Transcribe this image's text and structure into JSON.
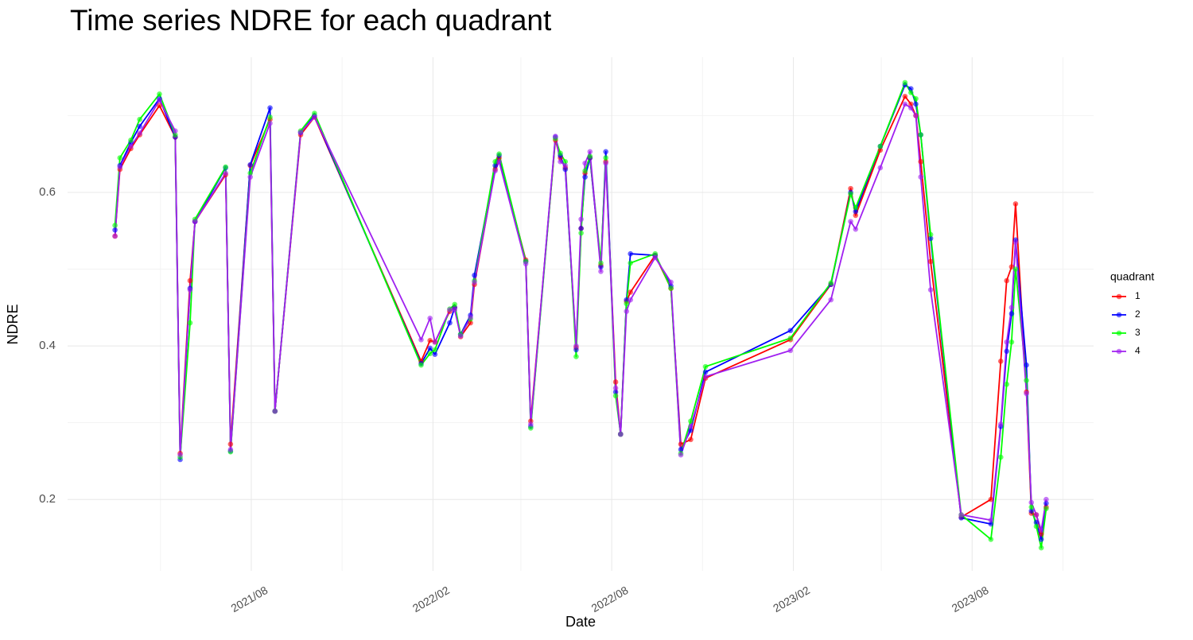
{
  "chart_data": {
    "type": "line",
    "title": "Time series NDRE for each quadrant",
    "x_label": "Date",
    "y_label": "NDRE",
    "legend_title": "quadrant",
    "legend": "right",
    "grid": true,
    "x": [
      "2021-03-16",
      "2021-03-21",
      "2021-04-01",
      "2021-04-10",
      "2021-04-30",
      "2021-05-16",
      "2021-05-21",
      "2021-05-31",
      "2021-06-05",
      "2021-07-06",
      "2021-07-11",
      "2021-07-31",
      "2021-08-20",
      "2021-08-25",
      "2021-09-20",
      "2021-10-04",
      "2022-01-20",
      "2022-01-29",
      "2022-02-03",
      "2022-02-18",
      "2022-02-23",
      "2022-03-01",
      "2022-03-11",
      "2022-03-15",
      "2022-04-05",
      "2022-04-09",
      "2022-05-06",
      "2022-05-11",
      "2022-06-05",
      "2022-06-10",
      "2022-06-15",
      "2022-06-26",
      "2022-07-01",
      "2022-07-05",
      "2022-07-10",
      "2022-07-21",
      "2022-07-26",
      "2022-08-05",
      "2022-08-10",
      "2022-08-16",
      "2022-08-20",
      "2022-09-14",
      "2022-09-30",
      "2022-10-10",
      "2022-10-20",
      "2022-11-04",
      "2023-01-29",
      "2023-03-11",
      "2023-03-31",
      "2023-04-05",
      "2023-04-30",
      "2023-05-25",
      "2023-05-31",
      "2023-06-05",
      "2023-06-10",
      "2023-06-20",
      "2023-07-21",
      "2023-08-20",
      "2023-08-30",
      "2023-09-05",
      "2023-09-10",
      "2023-09-14",
      "2023-09-25",
      "2023-09-30",
      "2023-10-05",
      "2023-10-10",
      "2023-10-15"
    ],
    "series": [
      {
        "name": "1",
        "color": "#ff0000",
        "values": [
          0.543,
          0.63,
          0.657,
          0.675,
          0.713,
          0.672,
          0.26,
          0.485,
          0.562,
          0.623,
          0.272,
          0.635,
          0.695,
          0.315,
          0.675,
          0.698,
          0.38,
          0.407,
          0.405,
          0.445,
          0.45,
          0.412,
          0.43,
          0.48,
          0.63,
          0.645,
          0.512,
          0.302,
          0.668,
          0.645,
          0.632,
          0.398,
          0.553,
          0.625,
          0.645,
          0.505,
          0.64,
          0.353,
          0.285,
          0.458,
          0.47,
          0.518,
          0.475,
          0.272,
          0.278,
          0.358,
          0.408,
          0.48,
          0.605,
          0.57,
          0.655,
          0.725,
          0.715,
          0.7,
          0.64,
          0.51,
          0.177,
          0.2,
          0.38,
          0.485,
          0.503,
          0.585,
          0.34,
          0.182,
          0.18,
          0.155,
          0.19
        ]
      },
      {
        "name": "2",
        "color": "#0000ff",
        "values": [
          0.551,
          0.635,
          0.665,
          0.686,
          0.722,
          0.672,
          0.252,
          0.475,
          0.562,
          0.632,
          0.263,
          0.636,
          0.71,
          0.315,
          0.678,
          0.7,
          0.377,
          0.397,
          0.389,
          0.43,
          0.45,
          0.415,
          0.44,
          0.492,
          0.635,
          0.648,
          0.51,
          0.295,
          0.672,
          0.648,
          0.63,
          0.395,
          0.553,
          0.62,
          0.645,
          0.503,
          0.653,
          0.34,
          0.285,
          0.46,
          0.52,
          0.518,
          0.478,
          0.265,
          0.29,
          0.366,
          0.42,
          0.48,
          0.6,
          0.575,
          0.66,
          0.74,
          0.735,
          0.715,
          0.675,
          0.54,
          0.176,
          0.168,
          0.295,
          0.393,
          0.442,
          0.538,
          0.375,
          0.185,
          0.17,
          0.148,
          0.195
        ]
      },
      {
        "name": "3",
        "color": "#00ff00",
        "values": [
          0.557,
          0.645,
          0.668,
          0.695,
          0.728,
          0.675,
          0.255,
          0.43,
          0.565,
          0.633,
          0.262,
          0.625,
          0.698,
          0.315,
          0.68,
          0.703,
          0.375,
          0.39,
          0.395,
          0.448,
          0.454,
          0.415,
          0.435,
          0.485,
          0.64,
          0.65,
          0.51,
          0.293,
          0.67,
          0.651,
          0.64,
          0.386,
          0.547,
          0.628,
          0.647,
          0.508,
          0.645,
          0.335,
          0.285,
          0.455,
          0.508,
          0.52,
          0.475,
          0.26,
          0.302,
          0.373,
          0.41,
          0.482,
          0.598,
          0.58,
          0.66,
          0.743,
          0.73,
          0.722,
          0.675,
          0.545,
          0.18,
          0.148,
          0.255,
          0.35,
          0.405,
          0.5,
          0.355,
          0.19,
          0.165,
          0.137,
          0.188
        ]
      },
      {
        "name": "4",
        "color": "#a020f0",
        "values": [
          0.543,
          0.633,
          0.66,
          0.677,
          0.72,
          0.68,
          0.258,
          0.473,
          0.562,
          0.625,
          0.265,
          0.62,
          0.69,
          0.315,
          0.678,
          0.698,
          0.408,
          0.436,
          0.405,
          0.447,
          0.447,
          0.413,
          0.437,
          0.483,
          0.628,
          0.64,
          0.507,
          0.298,
          0.673,
          0.64,
          0.635,
          0.4,
          0.565,
          0.638,
          0.653,
          0.497,
          0.638,
          0.345,
          0.285,
          0.445,
          0.46,
          0.515,
          0.483,
          0.258,
          0.295,
          0.36,
          0.394,
          0.46,
          0.562,
          0.552,
          0.632,
          0.715,
          0.71,
          0.7,
          0.62,
          0.473,
          0.18,
          0.173,
          0.298,
          0.405,
          0.45,
          0.535,
          0.338,
          0.196,
          0.18,
          0.16,
          0.2
        ]
      }
    ],
    "xlim": [
      "2021-01-27",
      "2023-12-02"
    ],
    "xticks": [
      {
        "value": "2021-08-01",
        "label": "2021/08"
      },
      {
        "value": "2022-02-01",
        "label": "2022/02"
      },
      {
        "value": "2022-08-01",
        "label": "2022/08"
      },
      {
        "value": "2023-02-01",
        "label": "2023/02"
      },
      {
        "value": "2023-08-01",
        "label": "2023/08"
      }
    ],
    "ylim": [
      0.107,
      0.776
    ],
    "yticks": [
      0.2,
      0.4,
      0.6
    ]
  }
}
